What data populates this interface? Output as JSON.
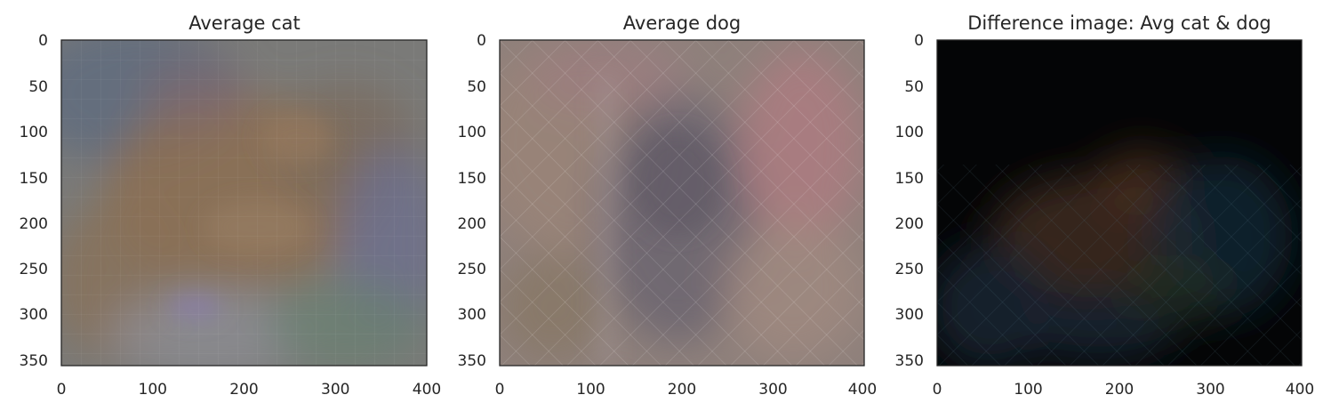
{
  "chart_data": [
    {
      "type": "heatmap",
      "title": "Average cat",
      "xlim": [
        0,
        400
      ],
      "ylim": [
        357,
        0
      ],
      "xticks": [
        "0",
        "100",
        "200",
        "300",
        "400"
      ],
      "yticks": [
        "0",
        "50",
        "100",
        "150",
        "200",
        "250",
        "300",
        "350"
      ],
      "grid": false,
      "palette": {
        "base": "#7d7b74",
        "accent1": "#8c6a4e",
        "accent2": "#66708a",
        "accent3": "#7d8c80"
      }
    },
    {
      "type": "heatmap",
      "title": "Average dog",
      "xlim": [
        0,
        400
      ],
      "ylim": [
        357,
        0
      ],
      "xticks": [
        "0",
        "100",
        "200",
        "300",
        "400"
      ],
      "yticks": [
        "0",
        "50",
        "100",
        "150",
        "200",
        "250",
        "300",
        "350"
      ],
      "grid": false,
      "palette": {
        "base": "#8e7f7a",
        "accent1": "#a8797c",
        "accent2": "#5f5a66",
        "accent3": "#9a8575"
      }
    },
    {
      "type": "heatmap",
      "title": "Difference image: Avg cat & dog",
      "xlim": [
        0,
        400
      ],
      "ylim": [
        357,
        0
      ],
      "xticks": [
        "0",
        "100",
        "200",
        "300",
        "400"
      ],
      "yticks": [
        "0",
        "50",
        "100",
        "150",
        "200",
        "250",
        "300",
        "350"
      ],
      "grid": false,
      "palette": {
        "base": "#050607",
        "accent1": "#3d2a1c",
        "accent2": "#1a2a3a",
        "accent3": "#243026"
      }
    }
  ]
}
